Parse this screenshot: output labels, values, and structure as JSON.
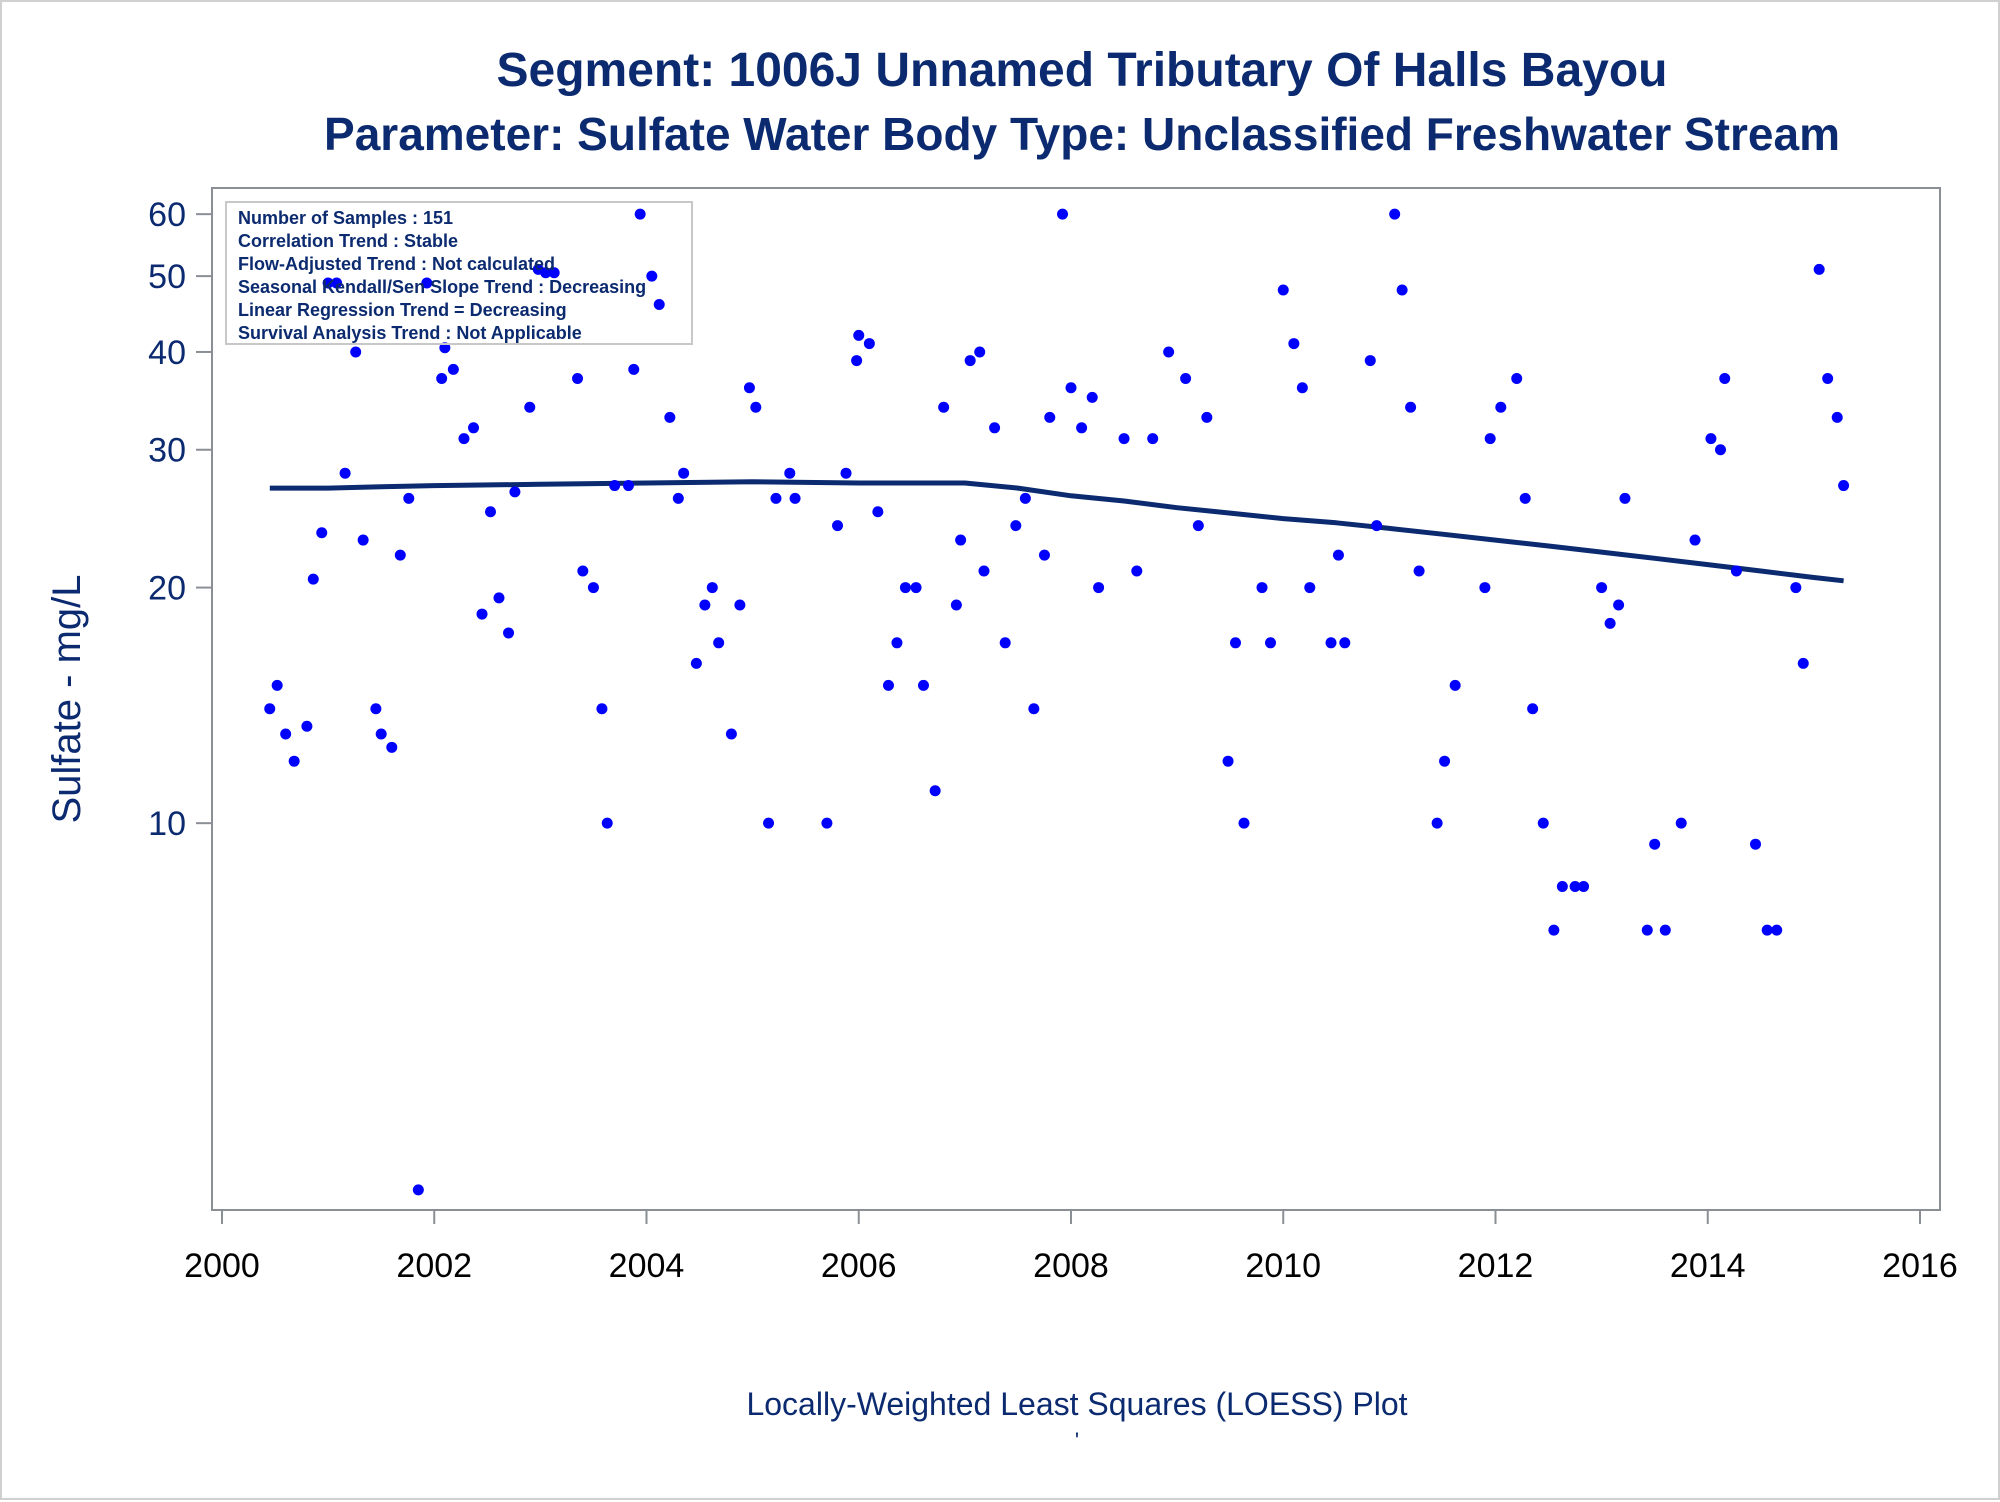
{
  "chart_data": {
    "type": "scatter",
    "title": "Segment: 1006J  Unnamed Tributary Of Halls Bayou",
    "subtitle": "Parameter: Sulfate   Water Body Type: Unclassified Freshwater Stream",
    "xlabel": "Locally-Weighted Least Squares (LOESS) Plot",
    "ylabel": "Sulfate - mg/L",
    "footnote": "'",
    "x_ticks": [
      "2000",
      "2002",
      "2004",
      "2006",
      "2008",
      "2010",
      "2012",
      "2014",
      "2016"
    ],
    "y_ticks": [
      "10",
      "20",
      "30",
      "40",
      "50",
      "60"
    ],
    "xlim": [
      2000,
      2016
    ],
    "ylim": [
      3.3,
      62
    ],
    "y_scale": "log",
    "grid": false,
    "info_box": {
      "placement": "top-left",
      "lines": [
        "Number of Samples : 151",
        "Correlation Trend : Stable",
        "Flow-Adjusted Trend : Not calculated",
        "Seasonal Kendall/Sen Slope Trend : Decreasing",
        "Linear Regression Trend = Decreasing",
        "Survival Analysis Trend : Not Applicable"
      ]
    },
    "colors": {
      "points": "#0000ff",
      "loess": "#0b2a6f",
      "text": "#0b2a6f",
      "frame": "#8a8f96"
    },
    "series": [
      {
        "type": "scatter",
        "points": [
          [
            2000.45,
            14
          ],
          [
            2000.52,
            15
          ],
          [
            2000.6,
            13
          ],
          [
            2000.68,
            12
          ],
          [
            2000.8,
            13.3
          ],
          [
            2000.86,
            20.5
          ],
          [
            2000.94,
            23.5
          ],
          [
            2001.0,
            49
          ],
          [
            2001.08,
            49
          ],
          [
            2001.16,
            28
          ],
          [
            2001.26,
            40
          ],
          [
            2001.33,
            23
          ],
          [
            2001.45,
            14
          ],
          [
            2001.5,
            13
          ],
          [
            2001.6,
            12.5
          ],
          [
            2001.68,
            22
          ],
          [
            2001.76,
            26
          ],
          [
            2001.85,
            3.4
          ],
          [
            2001.93,
            49
          ],
          [
            2002.07,
            37
          ],
          [
            2002.1,
            40.5
          ],
          [
            2002.18,
            38
          ],
          [
            2002.28,
            31
          ],
          [
            2002.37,
            32
          ],
          [
            2002.45,
            18.5
          ],
          [
            2002.53,
            25
          ],
          [
            2002.61,
            19.4
          ],
          [
            2002.7,
            17.5
          ],
          [
            2002.76,
            26.5
          ],
          [
            2002.9,
            34
          ],
          [
            2002.98,
            51
          ],
          [
            2003.05,
            50.5
          ],
          [
            2003.13,
            50.5
          ],
          [
            2003.35,
            37
          ],
          [
            2003.4,
            21
          ],
          [
            2003.5,
            20
          ],
          [
            2003.58,
            14
          ],
          [
            2003.63,
            10
          ],
          [
            2003.7,
            27
          ],
          [
            2003.83,
            27
          ],
          [
            2003.88,
            38
          ],
          [
            2003.94,
            60
          ],
          [
            2004.05,
            50
          ],
          [
            2004.12,
            46
          ],
          [
            2004.22,
            33
          ],
          [
            2004.3,
            26
          ],
          [
            2004.35,
            28
          ],
          [
            2004.47,
            16
          ],
          [
            2004.55,
            19
          ],
          [
            2004.62,
            20
          ],
          [
            2004.68,
            17
          ],
          [
            2004.8,
            13
          ],
          [
            2004.88,
            19
          ],
          [
            2004.97,
            36
          ],
          [
            2005.03,
            34
          ],
          [
            2005.15,
            10
          ],
          [
            2005.22,
            26
          ],
          [
            2005.35,
            28
          ],
          [
            2005.4,
            26
          ],
          [
            2005.7,
            10
          ],
          [
            2005.8,
            24
          ],
          [
            2005.88,
            28
          ],
          [
            2005.98,
            39
          ],
          [
            2006.0,
            42
          ],
          [
            2006.1,
            41
          ],
          [
            2006.18,
            25
          ],
          [
            2006.28,
            15
          ],
          [
            2006.36,
            17
          ],
          [
            2006.44,
            20
          ],
          [
            2006.54,
            20
          ],
          [
            2006.61,
            15
          ],
          [
            2006.72,
            11
          ],
          [
            2006.8,
            34
          ],
          [
            2006.92,
            19
          ],
          [
            2006.96,
            23
          ],
          [
            2007.05,
            39
          ],
          [
            2007.14,
            40
          ],
          [
            2007.18,
            21
          ],
          [
            2007.28,
            32
          ],
          [
            2007.38,
            17
          ],
          [
            2007.48,
            24
          ],
          [
            2007.57,
            26
          ],
          [
            2007.65,
            14
          ],
          [
            2007.75,
            22
          ],
          [
            2007.8,
            33
          ],
          [
            2007.92,
            60
          ],
          [
            2008.0,
            36
          ],
          [
            2008.1,
            32
          ],
          [
            2008.2,
            35
          ],
          [
            2008.26,
            20
          ],
          [
            2008.5,
            31
          ],
          [
            2008.62,
            21
          ],
          [
            2008.77,
            31
          ],
          [
            2008.92,
            40
          ],
          [
            2009.08,
            37
          ],
          [
            2009.2,
            24
          ],
          [
            2009.28,
            33
          ],
          [
            2009.48,
            12
          ],
          [
            2009.55,
            17
          ],
          [
            2009.63,
            10
          ],
          [
            2009.8,
            20
          ],
          [
            2009.88,
            17
          ],
          [
            2010.0,
            48
          ],
          [
            2010.1,
            41
          ],
          [
            2010.18,
            36
          ],
          [
            2010.25,
            20
          ],
          [
            2010.45,
            17
          ],
          [
            2010.52,
            22
          ],
          [
            2010.58,
            17
          ],
          [
            2010.82,
            39
          ],
          [
            2010.88,
            24
          ],
          [
            2011.05,
            60
          ],
          [
            2011.12,
            48
          ],
          [
            2011.2,
            34
          ],
          [
            2011.28,
            21
          ],
          [
            2011.45,
            10
          ],
          [
            2011.52,
            12
          ],
          [
            2011.62,
            15
          ],
          [
            2011.9,
            20
          ],
          [
            2011.95,
            31
          ],
          [
            2012.05,
            34
          ],
          [
            2012.2,
            37
          ],
          [
            2012.28,
            26
          ],
          [
            2012.35,
            14
          ],
          [
            2012.45,
            10
          ],
          [
            2012.55,
            7.3
          ],
          [
            2012.63,
            8.3
          ],
          [
            2012.75,
            8.3
          ],
          [
            2012.83,
            8.3
          ],
          [
            2013.0,
            20
          ],
          [
            2013.08,
            18
          ],
          [
            2013.16,
            19
          ],
          [
            2013.22,
            26
          ],
          [
            2013.43,
            7.3
          ],
          [
            2013.5,
            9.4
          ],
          [
            2013.6,
            7.3
          ],
          [
            2013.75,
            10
          ],
          [
            2013.88,
            23
          ],
          [
            2014.03,
            31
          ],
          [
            2014.12,
            30
          ],
          [
            2014.16,
            37
          ],
          [
            2014.27,
            21
          ],
          [
            2014.45,
            9.4
          ],
          [
            2014.56,
            7.3
          ],
          [
            2014.65,
            7.3
          ],
          [
            2014.83,
            20
          ],
          [
            2014.9,
            16
          ],
          [
            2015.05,
            51
          ],
          [
            2015.13,
            37
          ],
          [
            2015.22,
            33
          ],
          [
            2015.28,
            27
          ]
        ]
      },
      {
        "type": "line",
        "points": [
          [
            2000.45,
            26.8
          ],
          [
            2001.0,
            26.8
          ],
          [
            2001.5,
            26.9
          ],
          [
            2002.0,
            27.0
          ],
          [
            2003.0,
            27.1
          ],
          [
            2004.0,
            27.2
          ],
          [
            2005.0,
            27.3
          ],
          [
            2006.0,
            27.2
          ],
          [
            2007.0,
            27.2
          ],
          [
            2007.5,
            26.8
          ],
          [
            2008.0,
            26.2
          ],
          [
            2008.5,
            25.8
          ],
          [
            2009.0,
            25.3
          ],
          [
            2009.5,
            24.9
          ],
          [
            2010.0,
            24.5
          ],
          [
            2010.5,
            24.2
          ],
          [
            2011.0,
            23.8
          ],
          [
            2011.5,
            23.4
          ],
          [
            2012.0,
            23.0
          ],
          [
            2012.5,
            22.6
          ],
          [
            2013.0,
            22.2
          ],
          [
            2013.5,
            21.8
          ],
          [
            2014.0,
            21.4
          ],
          [
            2014.5,
            21.0
          ],
          [
            2015.0,
            20.6
          ],
          [
            2015.28,
            20.4
          ]
        ]
      }
    ]
  }
}
